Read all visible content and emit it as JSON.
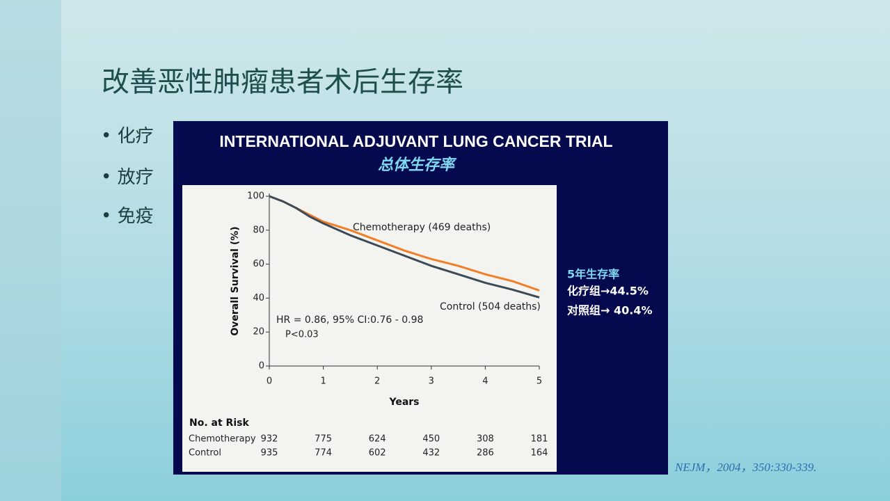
{
  "slide": {
    "title": "改善恶性肿瘤患者术后生存率",
    "bullets": [
      "化疗",
      "放疗",
      "免疫"
    ],
    "citation": "NEJM，2004，350:330-339."
  },
  "panel": {
    "title": "INTERNATIONAL ADJUVANT LUNG CANCER TRIAL",
    "subtitle": "总体生存率",
    "side_title": "5年生存率",
    "side_lines": [
      "化疗组→44.5%",
      "对照组→ 40.4%"
    ]
  },
  "chart_data": {
    "type": "line",
    "x_label": "Years",
    "y_label": "Overall Survival (%)",
    "x": [
      0,
      0.25,
      0.5,
      0.75,
      1,
      1.5,
      2,
      2.5,
      3,
      3.5,
      4,
      4.5,
      5
    ],
    "series": [
      {
        "name": "Chemotherapy (469 deaths)",
        "color": "#f07f2a",
        "values": [
          100,
          97,
          93,
          89,
          85,
          80,
          74,
          68,
          63,
          59,
          54,
          50,
          44.5
        ]
      },
      {
        "name": "Control (504 deaths)",
        "color": "#3c4a58",
        "values": [
          100,
          97,
          93,
          88,
          84,
          77,
          71,
          65,
          59,
          54,
          49,
          45,
          40.4
        ]
      }
    ],
    "xlim": [
      0,
      5
    ],
    "xticks": [
      0,
      1,
      2,
      3,
      4,
      5
    ],
    "ylim": [
      0,
      100
    ],
    "yticks": [
      0,
      20,
      40,
      60,
      80,
      100
    ],
    "annotations": [
      "HR = 0.86,   95% CI:0.76 - 0.98",
      "P<0.03"
    ]
  },
  "risk_table": {
    "title": "No. at Risk",
    "rows": [
      {
        "name": "Chemotherapy",
        "values": [
          932,
          775,
          624,
          450,
          308,
          181
        ]
      },
      {
        "name": "Control",
        "values": [
          935,
          774,
          602,
          432,
          286,
          164
        ]
      }
    ]
  }
}
